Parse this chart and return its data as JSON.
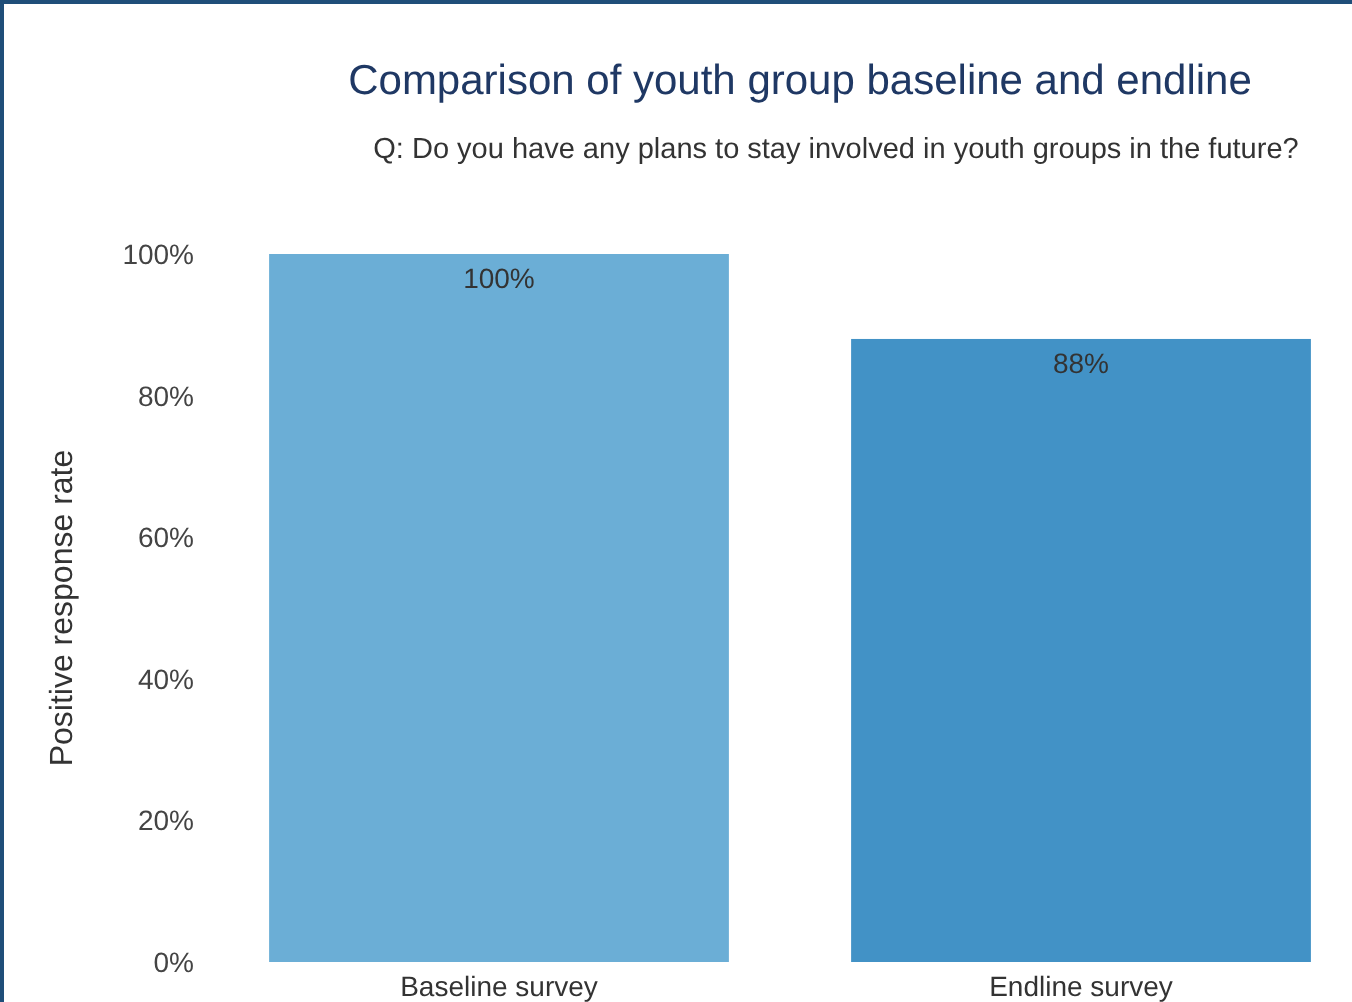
{
  "chart_data": {
    "type": "bar",
    "title": "Comparison of youth group baseline and endline",
    "subtitle": "Q: Do you have any plans to stay involved in youth groups in the future?",
    "ylabel": "Positive response rate",
    "categories": [
      "Baseline survey",
      "Endline survey"
    ],
    "values": [
      100,
      88
    ],
    "colors": [
      "#6baed6",
      "#4292c6"
    ],
    "value_labels": [
      "100%",
      "88%"
    ],
    "ylim": [
      0,
      100
    ],
    "yticks": [
      {
        "value": 0,
        "label": "0%"
      },
      {
        "value": 20,
        "label": "20%"
      },
      {
        "value": 40,
        "label": "40%"
      },
      {
        "value": 60,
        "label": "60%"
      },
      {
        "value": 80,
        "label": "80%"
      },
      {
        "value": 100,
        "label": "100%"
      }
    ],
    "grid": false
  }
}
